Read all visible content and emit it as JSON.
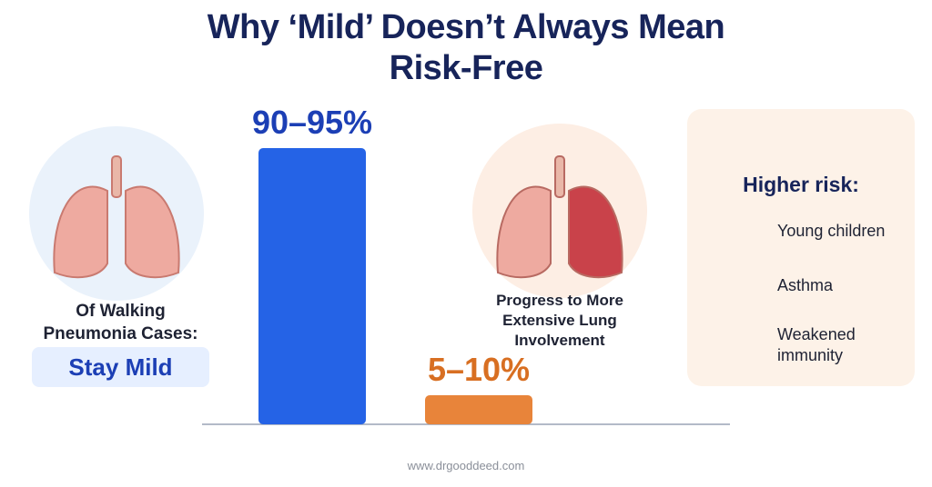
{
  "chart_data": {
    "type": "bar",
    "title": "Why ‘Mild’ Doesn’t Always Mean Risk-Free",
    "categories": [
      "Of Walking Pneumonia Cases:",
      "Progress to More Extensive Lung Involvement"
    ],
    "annotation": "Stay Mild",
    "low": [
      90,
      5
    ],
    "high": [
      95,
      10
    ],
    "value_labels": [
      "90–95%",
      "5–10%"
    ],
    "colors": [
      "#2563e6",
      "#e8843a"
    ],
    "label_colors": [
      "#1c3fb5",
      "#d86f22"
    ],
    "ylim": [
      0,
      100
    ]
  },
  "risk_panel": {
    "heading": "Higher risk:",
    "items": [
      "Young children",
      "Asthma",
      "Weakened immunity"
    ]
  },
  "footer": "www.drgooddeed.com"
}
